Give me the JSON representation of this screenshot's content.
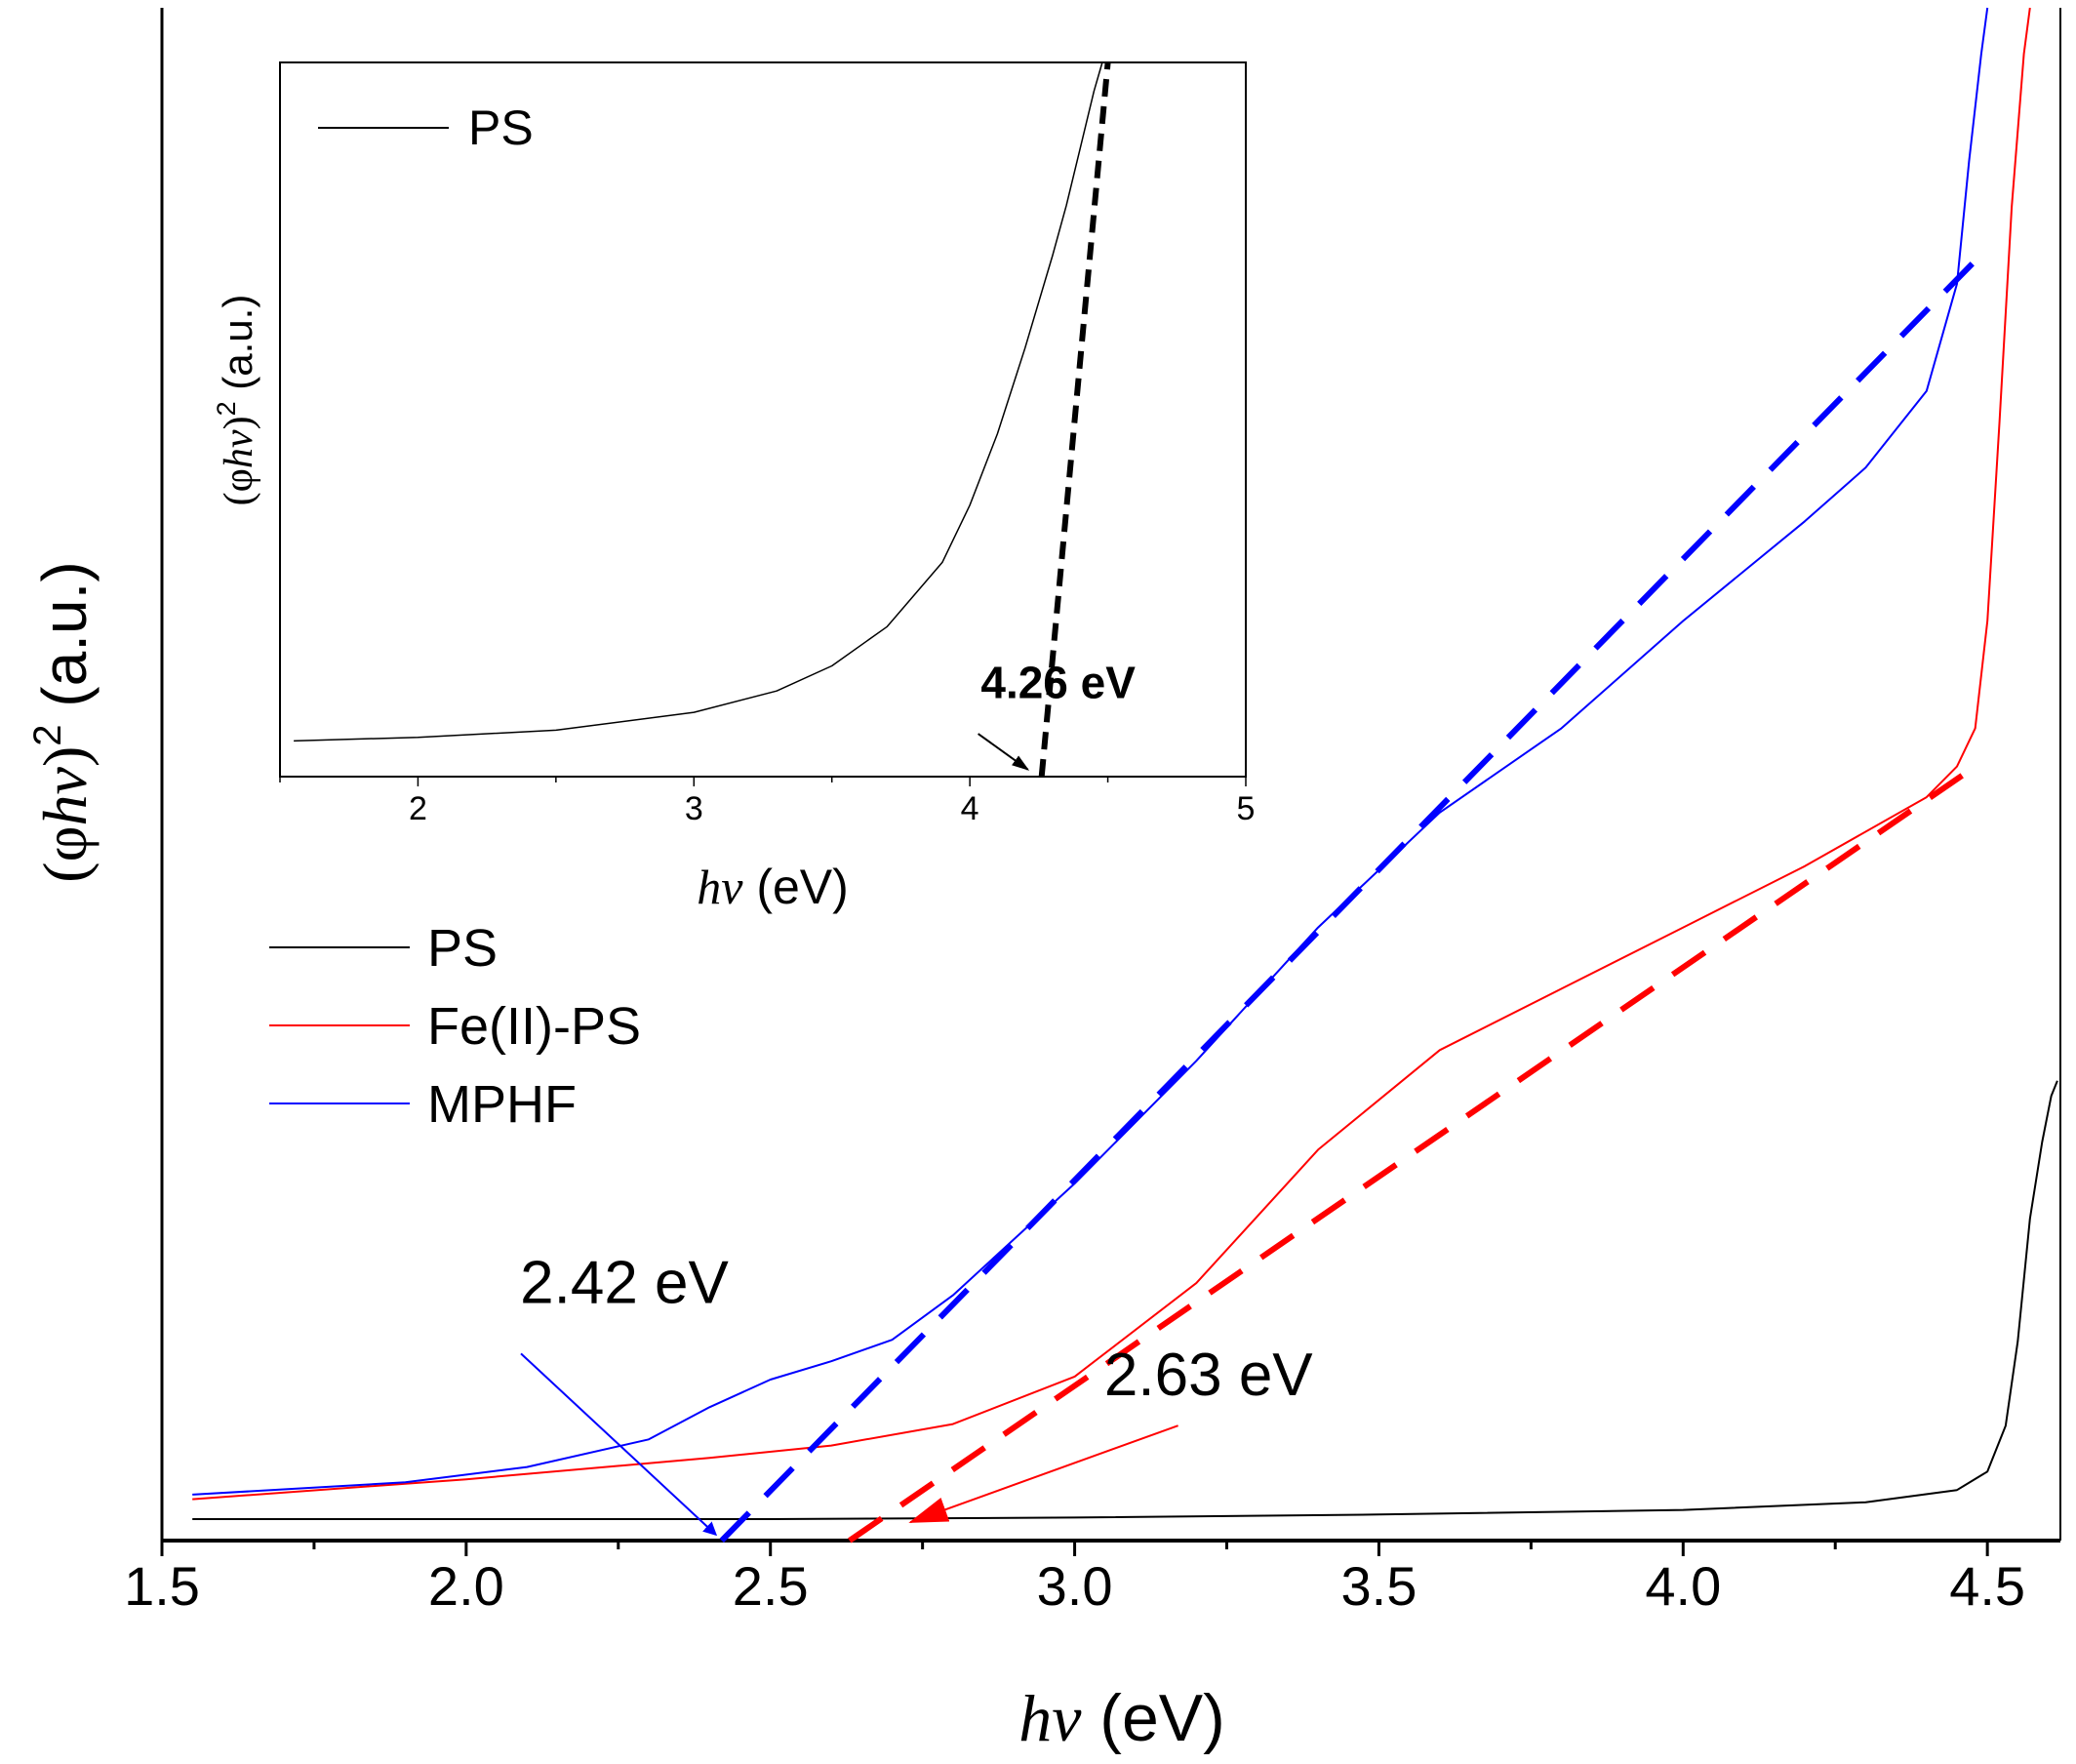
{
  "colors": {
    "PS": "#000000",
    "Fe(II)-PS": "#ff0000",
    "MPHF": "#0000ff"
  },
  "chart_data": [
    {
      "type": "line",
      "role": "main",
      "xlabel": {
        "italic": "hν",
        "rest": " (eV)"
      },
      "ylabel": {
        "pre": "(φ",
        "italic": "hν",
        "post": ")",
        "sup": "2",
        "rest": " (a.u.)"
      },
      "xlim": [
        1.5,
        4.62
      ],
      "ylim": [
        0,
        1
      ],
      "y_ticks_shown": false,
      "x_ticks": [
        1.5,
        2.0,
        2.5,
        3.0,
        3.5,
        4.0,
        4.5
      ],
      "x_tick_labels": [
        "1.5",
        "2.0",
        "2.5",
        "3.0",
        "3.5",
        "4.0",
        "4.5"
      ],
      "legend": {
        "position": "left-middle",
        "entries": [
          "PS",
          "Fe(II)-PS",
          "MPHF"
        ]
      },
      "series": [
        {
          "name": "PS",
          "color": "#000000",
          "style": "solid",
          "points": [
            [
              1.55,
              0.014
            ],
            [
              2.0,
              0.014
            ],
            [
              2.5,
              0.014
            ],
            [
              3.0,
              0.015
            ],
            [
              3.5,
              0.017
            ],
            [
              4.0,
              0.02
            ],
            [
              4.3,
              0.025
            ],
            [
              4.45,
              0.033
            ],
            [
              4.5,
              0.045
            ],
            [
              4.53,
              0.075
            ],
            [
              4.55,
              0.13
            ],
            [
              4.57,
              0.21
            ],
            [
              4.59,
              0.26
            ],
            [
              4.605,
              0.29
            ],
            [
              4.615,
              0.3
            ]
          ]
        },
        {
          "name": "Fe(II)-PS",
          "color": "#ff0000",
          "style": "solid",
          "points": [
            [
              1.55,
              0.027
            ],
            [
              2.0,
              0.04
            ],
            [
              2.4,
              0.054
            ],
            [
              2.6,
              0.062
            ],
            [
              2.8,
              0.076
            ],
            [
              3.0,
              0.107
            ],
            [
              3.2,
              0.168
            ],
            [
              3.4,
              0.255
            ],
            [
              3.6,
              0.32
            ],
            [
              3.8,
              0.36
            ],
            [
              4.0,
              0.4
            ],
            [
              4.2,
              0.44
            ],
            [
              4.4,
              0.485
            ],
            [
              4.45,
              0.505
            ],
            [
              4.48,
              0.53
            ],
            [
              4.5,
              0.6
            ],
            [
              4.52,
              0.73
            ],
            [
              4.54,
              0.87
            ],
            [
              4.56,
              0.97
            ],
            [
              4.57,
              1.0
            ]
          ]
        },
        {
          "name": "MPHF",
          "color": "#0000ff",
          "style": "solid",
          "points": [
            [
              1.55,
              0.03
            ],
            [
              1.9,
              0.038
            ],
            [
              2.1,
              0.048
            ],
            [
              2.3,
              0.066
            ],
            [
              2.4,
              0.087
            ],
            [
              2.5,
              0.105
            ],
            [
              2.6,
              0.117
            ],
            [
              2.7,
              0.131
            ],
            [
              2.8,
              0.16
            ],
            [
              3.0,
              0.233
            ],
            [
              3.2,
              0.313
            ],
            [
              3.4,
              0.4
            ],
            [
              3.6,
              0.475
            ],
            [
              3.8,
              0.53
            ],
            [
              4.0,
              0.6
            ],
            [
              4.2,
              0.665
            ],
            [
              4.3,
              0.7
            ],
            [
              4.4,
              0.75
            ],
            [
              4.45,
              0.82
            ],
            [
              4.47,
              0.9
            ],
            [
              4.49,
              0.97
            ],
            [
              4.5,
              1.0
            ]
          ]
        },
        {
          "name": "",
          "color": "#0000ff",
          "style": "dashed-fit",
          "points": [
            [
              2.42,
              0.0
            ],
            [
              4.48,
              0.835
            ]
          ]
        },
        {
          "name": "",
          "color": "#ff0000",
          "style": "dashed-fit",
          "points": [
            [
              2.63,
              0.0
            ],
            [
              4.48,
              0.505
            ]
          ]
        }
      ],
      "annotations": [
        {
          "text": "2.42 eV",
          "color": "#0000ff",
          "text_at": [
            2.26,
            0.155
          ],
          "arrow_from": [
            2.09,
            0.122
          ],
          "arrow_to": [
            2.41,
            0.004
          ]
        },
        {
          "text": "2.63 eV",
          "color": "#ff0000",
          "text_at": [
            3.22,
            0.095
          ],
          "arrow_from": [
            3.17,
            0.075
          ],
          "arrow_to": [
            2.73,
            0.012
          ]
        }
      ]
    },
    {
      "type": "line",
      "role": "inset",
      "xlabel": {
        "italic": "hν",
        "rest": " (eV)"
      },
      "ylabel": {
        "pre": "(φ",
        "italic": "hν",
        "post": ")",
        "sup": "2",
        "rest": " (a.u.)"
      },
      "xlim": [
        1.5,
        5.0
      ],
      "ylim": [
        0,
        1
      ],
      "y_ticks_shown": false,
      "x_ticks": [
        2,
        3,
        4,
        5
      ],
      "x_tick_labels": [
        "2",
        "3",
        "4",
        "5"
      ],
      "legend": {
        "position": "top-left",
        "entries": [
          "PS"
        ]
      },
      "series": [
        {
          "name": "PS",
          "color": "#000000",
          "style": "solid",
          "points": [
            [
              1.55,
              0.05
            ],
            [
              2.0,
              0.055
            ],
            [
              2.5,
              0.065
            ],
            [
              3.0,
              0.09
            ],
            [
              3.3,
              0.12
            ],
            [
              3.5,
              0.155
            ],
            [
              3.7,
              0.21
            ],
            [
              3.9,
              0.3
            ],
            [
              4.0,
              0.38
            ],
            [
              4.1,
              0.48
            ],
            [
              4.2,
              0.6
            ],
            [
              4.3,
              0.73
            ],
            [
              4.35,
              0.8
            ],
            [
              4.4,
              0.88
            ],
            [
              4.45,
              0.96
            ],
            [
              4.48,
              1.0
            ]
          ]
        },
        {
          "name": "",
          "color": "#000000",
          "style": "dashed-fit",
          "points": [
            [
              4.26,
              0.0
            ],
            [
              4.5,
              1.0
            ]
          ]
        }
      ],
      "annotations": [
        {
          "text": "4.26 eV",
          "color": "#000000",
          "bold": true,
          "text_at": [
            4.32,
            0.11
          ],
          "arrow_from": [
            4.03,
            0.06
          ],
          "arrow_to": [
            4.21,
            0.01
          ]
        }
      ]
    }
  ]
}
